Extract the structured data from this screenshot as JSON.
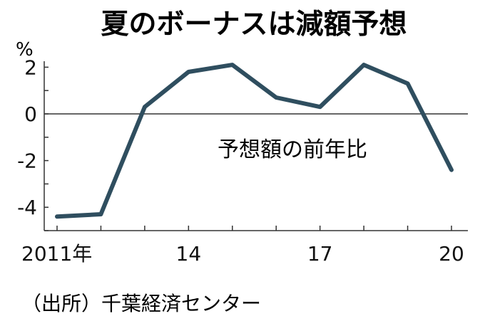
{
  "chart_data": {
    "type": "line",
    "title": "夏のボーナスは減額予想",
    "ylabel": "%",
    "series_label": "予想額の前年比",
    "source": "（出所）千葉経済センター",
    "x": [
      2011,
      2012,
      2013,
      2014,
      2015,
      2016,
      2017,
      2018,
      2019,
      2020
    ],
    "xlim": [
      2011,
      2020
    ],
    "ylim": [
      -5,
      2.5
    ],
    "x_ticks": [
      {
        "value": 2011,
        "label": "2011年"
      },
      {
        "value": 2014,
        "label": "14"
      },
      {
        "value": 2017,
        "label": "17"
      },
      {
        "value": 2020,
        "label": "20"
      }
    ],
    "y_ticks": [
      {
        "value": 2,
        "label": "2"
      },
      {
        "value": 0,
        "label": "0"
      },
      {
        "value": -2,
        "label": "-2"
      },
      {
        "value": -4,
        "label": "-4"
      }
    ],
    "series": [
      {
        "values": [
          -4.4,
          -4.3,
          0.3,
          1.8,
          2.1,
          0.7,
          0.3,
          2.1,
          1.3,
          -2.4
        ]
      }
    ],
    "colors": {
      "line": "#2f4e5f",
      "axis": "#333333",
      "text": "#111111"
    },
    "grid": false,
    "zero_line": true
  }
}
